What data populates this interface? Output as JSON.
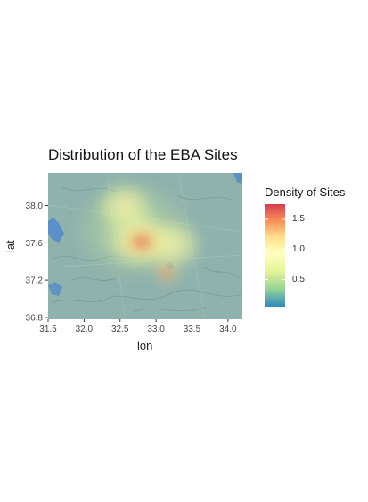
{
  "chart_data": {
    "type": "heatmap",
    "title": "Distribution of the EBA Sites",
    "xlabel": "lon",
    "ylabel": "lat",
    "xlim": [
      31.5,
      34.2
    ],
    "ylim": [
      36.78,
      38.35
    ],
    "x_ticks": [
      "31.5",
      "32.0",
      "32.5",
      "33.0",
      "33.5",
      "34.0"
    ],
    "y_ticks": [
      "36.8",
      "37.2",
      "37.6",
      "38.0"
    ],
    "x_tick_values": [
      31.5,
      32.0,
      32.5,
      33.0,
      33.5,
      34.0
    ],
    "y_tick_values": [
      36.8,
      37.2,
      37.6,
      38.0
    ],
    "legend": {
      "title": "Density of Sites",
      "placement": "right",
      "range": [
        0.05,
        1.75
      ],
      "ticks": [
        1.5,
        1.0,
        0.5
      ],
      "tick_labels": [
        "1.5",
        "1.0",
        "0.5"
      ],
      "colors": [
        "#d53e4f",
        "#fc8d59",
        "#fee08b",
        "#ffffbf",
        "#e6f598",
        "#99d594",
        "#3288bd"
      ]
    },
    "density_peaks": [
      {
        "lon": 32.8,
        "lat": 37.6,
        "density": 1.7
      },
      {
        "lon": 33.15,
        "lat": 37.27,
        "density": 1.3
      },
      {
        "lon": 32.55,
        "lat": 37.9,
        "density": 0.9
      },
      {
        "lon": 33.3,
        "lat": 37.45,
        "density": 0.7
      }
    ],
    "basemap_colors": {
      "land": "#8fb2ac",
      "water": "#5b8fc7"
    }
  }
}
